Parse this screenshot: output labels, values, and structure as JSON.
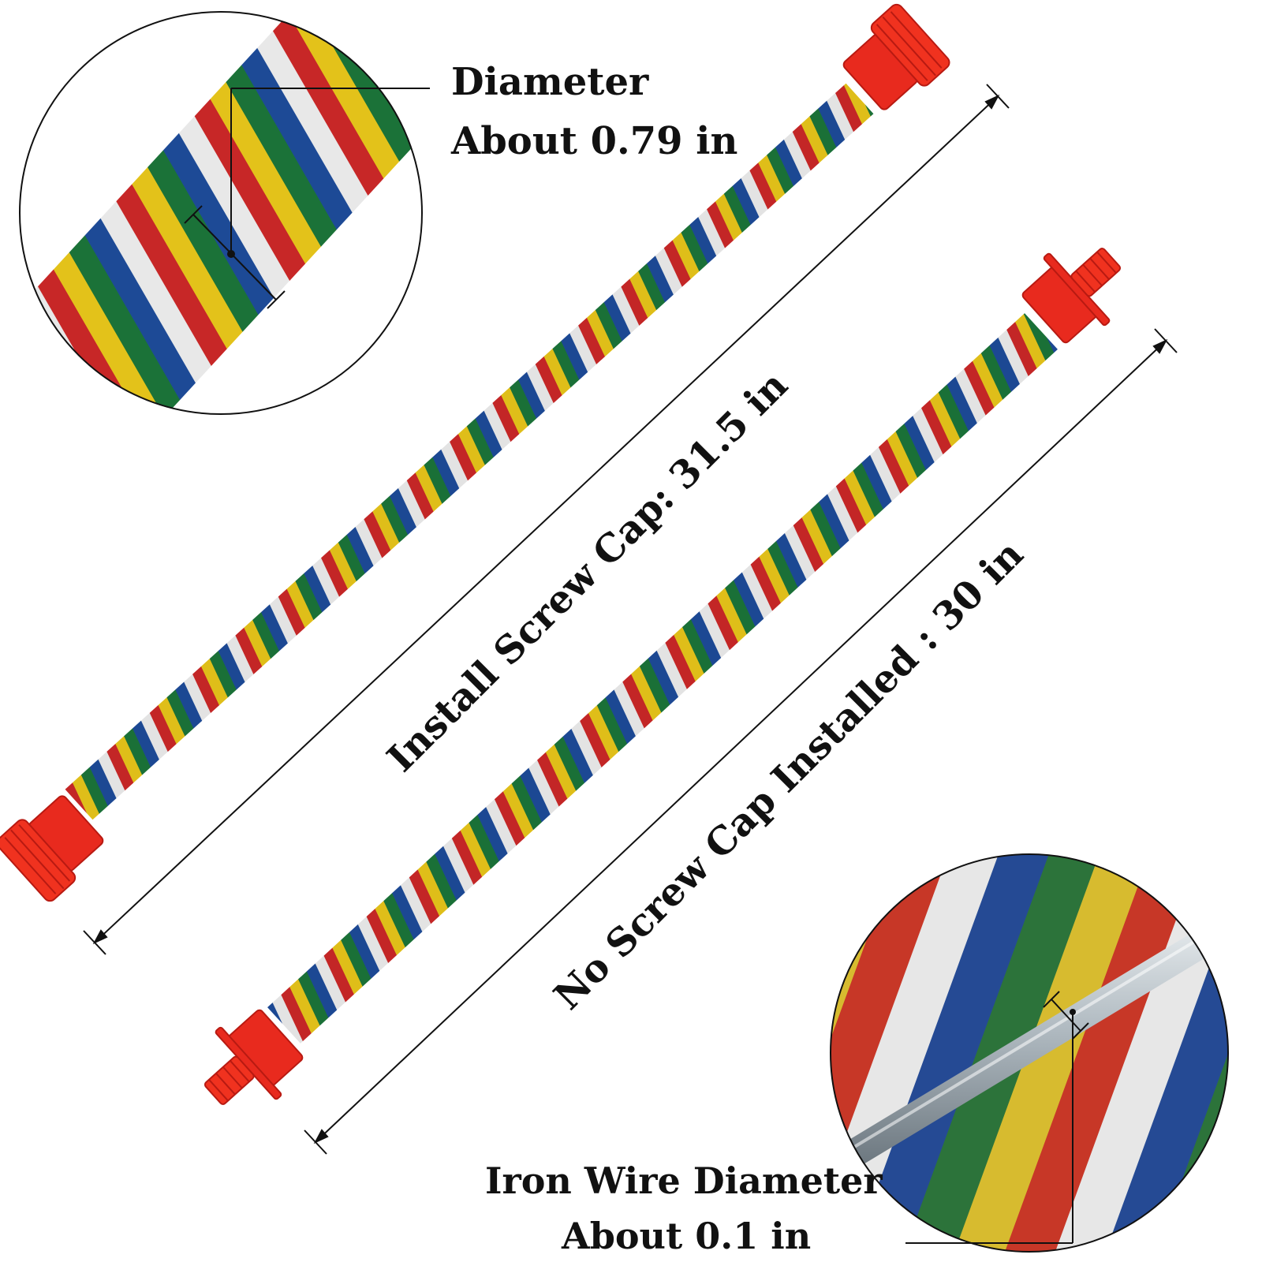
{
  "labels": {
    "rope_diameter_title": "Diameter",
    "rope_diameter_value": "About 0.79 in",
    "length_with_cap": "Install Screw Cap:  31.5 in",
    "length_without_cap": "No Screw Cap Installed  :  30 in",
    "wire_diameter_title": "Iron Wire Diameter",
    "wire_diameter_value": "About 0.1 in"
  },
  "colors": {
    "rope_red": "#d42a2a",
    "rope_yellow": "#f2cf1c",
    "rope_green": "#1d7a3c",
    "rope_blue": "#1f4fa0",
    "rope_white": "#f7f7f7",
    "cap_red": "#e82a1e",
    "wire_silver": "#b9c2c8",
    "outline": "#111111"
  }
}
